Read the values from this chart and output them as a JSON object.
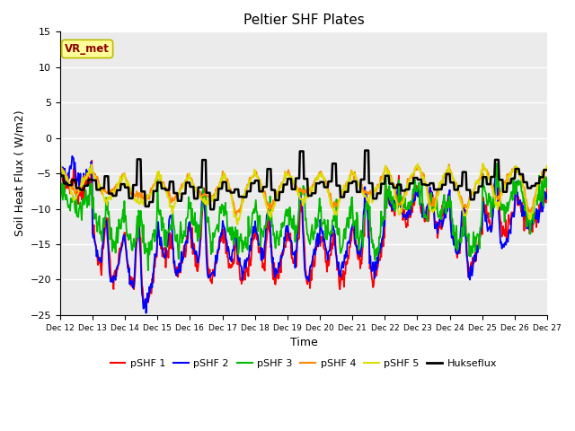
{
  "title": "Peltier SHF Plates",
  "xlabel": "Time",
  "ylabel": "Soil Heat Flux ( W/m2)",
  "ylim": [
    -25,
    15
  ],
  "yticks": [
    -25,
    -20,
    -15,
    -10,
    -5,
    0,
    5,
    10,
    15
  ],
  "background_color": "#ebebeb",
  "legend_labels": [
    "pSHF 1",
    "pSHF 2",
    "pSHF 3",
    "pSHF 4",
    "pSHF 5",
    "Hukseflux"
  ],
  "legend_colors": [
    "#ff0000",
    "#0000ff",
    "#00bb00",
    "#ff8800",
    "#dddd00",
    "#000000"
  ],
  "annotation_text": "VR_met",
  "annotation_box_color": "#ffff99",
  "annotation_box_edge": "#bbbb00",
  "xtick_labels": [
    "Dec 12",
    "Dec 13",
    "Dec 14",
    "Dec 15",
    "Dec 16",
    "Dec 17",
    "Dec 18",
    "Dec 19",
    "Dec 20",
    "Dec 21",
    "Dec 22",
    "Dec 23",
    "Dec 24",
    "Dec 25",
    "Dec 26",
    "Dec 27"
  ]
}
